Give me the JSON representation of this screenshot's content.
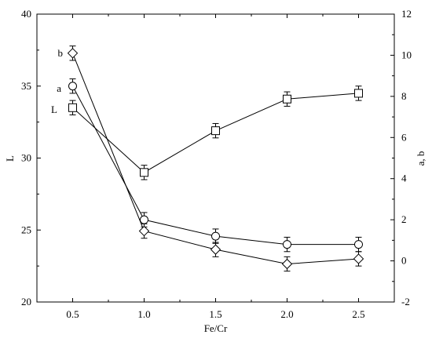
{
  "chart_data": {
    "type": "line",
    "title": "",
    "xlabel": "Fe/Cr",
    "ylabel_left": "L",
    "ylabel_right": "a, b",
    "x": [
      0.5,
      1.0,
      1.5,
      2.0,
      2.5
    ],
    "xlim": [
      0.25,
      2.75
    ],
    "ylim_left": [
      20,
      40
    ],
    "ylim_right": [
      -2,
      12
    ],
    "x_ticks": [
      "0.5",
      "1.0",
      "1.5",
      "2.0",
      "2.5"
    ],
    "y_left_ticks": [
      "20",
      "25",
      "30",
      "35",
      "40"
    ],
    "y_right_ticks": [
      "-2",
      "0",
      "2",
      "4",
      "6",
      "8",
      "10",
      "12"
    ],
    "grid": false,
    "series": [
      {
        "name": "L",
        "axis": "left",
        "marker": "square",
        "values": [
          33.5,
          29.0,
          31.9,
          34.1,
          34.5
        ],
        "error": [
          0.5,
          0.5,
          0.5,
          0.5,
          0.5
        ]
      },
      {
        "name": "a",
        "axis": "right",
        "marker": "circle",
        "values": [
          8.5,
          2.0,
          1.2,
          0.8,
          0.8
        ],
        "error": [
          0.35,
          0.35,
          0.35,
          0.35,
          0.35
        ]
      },
      {
        "name": "b",
        "axis": "right",
        "marker": "diamond",
        "values": [
          10.1,
          1.45,
          0.55,
          -0.15,
          0.1
        ],
        "error": [
          0.35,
          0.35,
          0.35,
          0.35,
          0.35
        ]
      }
    ]
  }
}
